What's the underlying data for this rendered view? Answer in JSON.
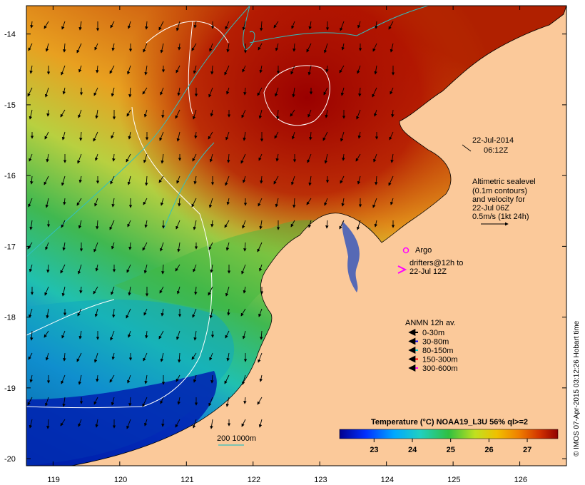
{
  "map": {
    "date": "22-Jul-2014",
    "time": "06:12Z",
    "lat_ticks": [
      "-14",
      "-15",
      "-16",
      "-17",
      "-18",
      "-19",
      "-20"
    ],
    "lon_ticks": [
      "119",
      "120",
      "121",
      "122",
      "123",
      "124",
      "125",
      "126"
    ],
    "lat_range": [
      -20.1,
      -13.6
    ],
    "lon_range": [
      118.6,
      126.7
    ]
  },
  "altimetry": {
    "lines": [
      "Altimetric sealevel",
      "(0.1m contours)",
      "and velocity for",
      "22-Jul 06Z",
      "0.5m/s (1kt 24h)"
    ]
  },
  "argo": {
    "label": "Argo"
  },
  "drifters": {
    "line1": "drifters@12h to",
    "line2": "22-Jul 12Z"
  },
  "anmn": {
    "title": "ANMN 12h av.",
    "items": [
      {
        "label": "0-30m",
        "color": "#000000"
      },
      {
        "label": "30-80m",
        "color": "#0000ff"
      },
      {
        "label": "80-150m",
        "color": "#00d0d0"
      },
      {
        "label": "150-300m",
        "color": "#ff0000"
      },
      {
        "label": "300-600m",
        "color": "#ff00ff"
      }
    ]
  },
  "bathy": {
    "label": "200  1000m"
  },
  "colorbar": {
    "title": "Temperature (°C) NOAA19_L3U 56% ql>=2",
    "ticks": [
      "23",
      "24",
      "25",
      "26",
      "27"
    ],
    "range": [
      22.1,
      27.8
    ]
  },
  "credit": "© IMOS 07-Apr-2015 03:12:26 Hobart time",
  "colors": {
    "land": "#fbc99a",
    "warm": "#a00000",
    "cold": "#00108a",
    "contour": "#ffffff",
    "bathy": "#30c0c0"
  }
}
